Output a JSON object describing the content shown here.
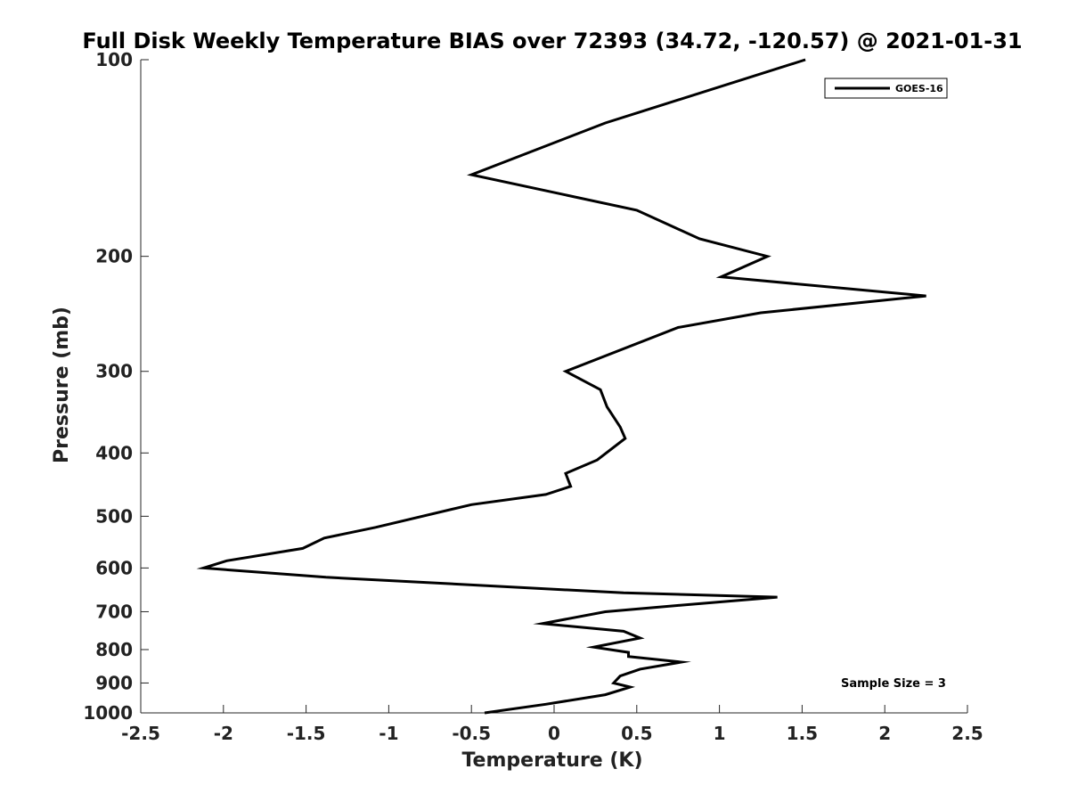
{
  "chart_data": {
    "type": "line",
    "title": "Full Disk Weekly Temperature BIAS over 72393 (34.72, -120.57) @ 2021-01-31",
    "xlabel": "Temperature (K)",
    "ylabel": "Pressure (mb)",
    "xlim": [
      -2.5,
      2.5
    ],
    "ylim": [
      100,
      1000
    ],
    "yscale": "log",
    "y_reversed": true,
    "grid": false,
    "x_ticks": [
      -2.5,
      -2,
      -1.5,
      -1,
      -0.5,
      0,
      0.5,
      1,
      1.5,
      2,
      2.5
    ],
    "x_tick_labels": [
      "-2.5",
      "-2",
      "-1.5",
      "-1",
      "-0.5",
      "0",
      "0.5",
      "1",
      "1.5",
      "2",
      "2.5"
    ],
    "y_ticks": [
      100,
      200,
      300,
      400,
      500,
      600,
      700,
      800,
      900,
      1000
    ],
    "y_tick_labels": [
      "100",
      "200",
      "300",
      "400",
      "500",
      "600",
      "700",
      "800",
      "900",
      "1000"
    ],
    "legend_position": "top-right",
    "series": [
      {
        "name": "GOES-16",
        "color": "#000000",
        "points": [
          [
            1.52,
            100
          ],
          [
            0.31,
            125
          ],
          [
            -0.5,
            150
          ],
          [
            0.5,
            170
          ],
          [
            0.88,
            188
          ],
          [
            1.29,
            200
          ],
          [
            1.01,
            215
          ],
          [
            2.25,
            230
          ],
          [
            1.25,
            244
          ],
          [
            0.75,
            257
          ],
          [
            0.07,
            300
          ],
          [
            0.28,
            320
          ],
          [
            0.32,
            340
          ],
          [
            0.4,
            365
          ],
          [
            0.43,
            380
          ],
          [
            0.26,
            410
          ],
          [
            0.07,
            430
          ],
          [
            0.1,
            450
          ],
          [
            -0.05,
            463
          ],
          [
            -0.5,
            480
          ],
          [
            -1.08,
            520
          ],
          [
            -1.39,
            540
          ],
          [
            -1.52,
            560
          ],
          [
            -1.98,
            585
          ],
          [
            -2.12,
            600
          ],
          [
            -1.38,
            620
          ],
          [
            0.42,
            655
          ],
          [
            1.35,
            665
          ],
          [
            0.89,
            680
          ],
          [
            0.31,
            700
          ],
          [
            -0.07,
            730
          ],
          [
            0.42,
            750
          ],
          [
            0.52,
            768
          ],
          [
            0.24,
            793
          ],
          [
            0.45,
            808
          ],
          [
            0.45,
            820
          ],
          [
            0.77,
            836
          ],
          [
            0.52,
            857
          ],
          [
            0.4,
            878
          ],
          [
            0.36,
            900
          ],
          [
            0.46,
            913
          ],
          [
            0.31,
            938
          ],
          [
            -0.05,
            970
          ],
          [
            -0.42,
            1000
          ]
        ]
      }
    ],
    "annotation": "Sample Size = 3"
  }
}
